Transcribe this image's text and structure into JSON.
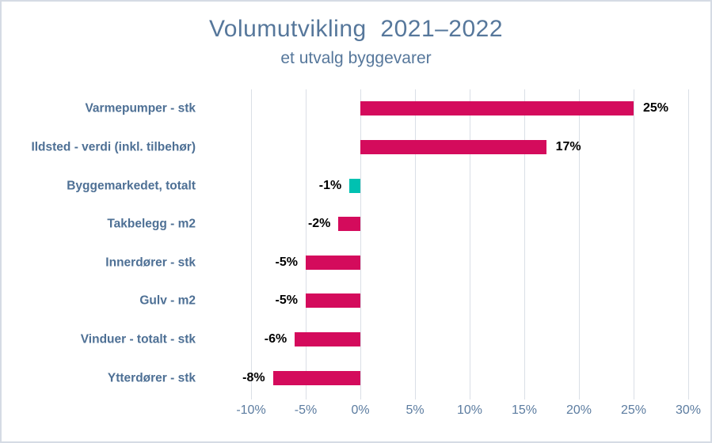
{
  "header": {
    "title": "Volumutvikling  2021–2022",
    "subtitle": "et utvalg byggevarer"
  },
  "colors": {
    "title_text": "#56779b",
    "category_text": "#4e7095",
    "axis_text": "#5c7ca0",
    "value_text": "#000000",
    "bar_pink": "#d40b5c",
    "bar_teal": "#00c1b1",
    "gridline": "#dadfe6",
    "frame_border": "#d5dbe4",
    "background": "#ffffff"
  },
  "chart_data": {
    "type": "bar",
    "orientation": "horizontal",
    "title": "Volumutvikling  2021–2022",
    "subtitle": "et utvalg byggevarer",
    "categories": [
      "Varmepumper - stk",
      "Ildsted - verdi (inkl. tilbehør)",
      "Byggemarkedet, totalt",
      "Takbelegg - m2",
      "Innerdører - stk",
      "Gulv - m2",
      "Vinduer - totalt - stk",
      "Ytterdører - stk"
    ],
    "values": [
      25,
      17,
      -1,
      -2,
      -5,
      -5,
      -6,
      -8
    ],
    "data_labels": [
      "25%",
      "17%",
      "-1%",
      "-2%",
      "-5%",
      "-5%",
      "-6%",
      "-8%"
    ],
    "bar_colors": [
      "#d40b5c",
      "#d40b5c",
      "#00c1b1",
      "#d40b5c",
      "#d40b5c",
      "#d40b5c",
      "#d40b5c",
      "#d40b5c"
    ],
    "xlim": [
      -10,
      30
    ],
    "x_tick_values": [
      -10,
      -5,
      0,
      5,
      10,
      15,
      20,
      25,
      30
    ],
    "x_tick_labels": [
      "-10%",
      "-5%",
      "0%",
      "5%",
      "10%",
      "15%",
      "20%",
      "25%",
      "30%"
    ],
    "grid": true,
    "legend": "none",
    "value_labels_position": "outside-end"
  }
}
